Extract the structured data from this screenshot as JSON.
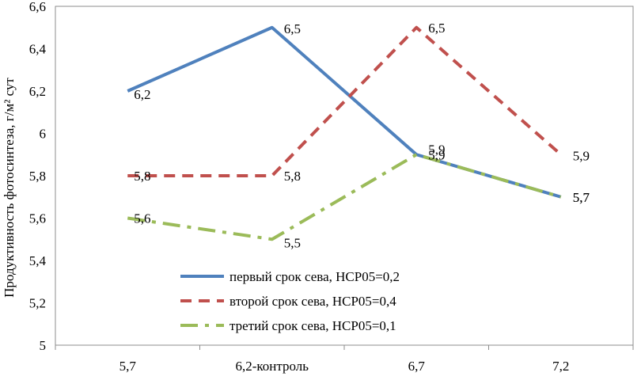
{
  "chart_data": {
    "type": "line",
    "categories": [
      "5,7",
      "6,2-контроль",
      "6,7",
      "7,2"
    ],
    "ylabel": "Продуктивность фотосинтеза, г/м² сут",
    "ylim": [
      5,
      6.6
    ],
    "yticks": [
      5,
      5.2,
      5.4,
      5.6,
      5.8,
      6,
      6.2,
      6.4,
      6.6
    ],
    "ytick_labels": [
      "5",
      "5,2",
      "5,4",
      "5,6",
      "5,8",
      "6",
      "6,2",
      "6,4",
      "6,6"
    ],
    "grid": false,
    "legend_position": "bottom-center",
    "series": [
      {
        "name": "первый срок сева, НСР05=0,2",
        "values": [
          6.2,
          6.5,
          5.9,
          5.7
        ],
        "labels": [
          "6,2",
          "6,5",
          "5,9",
          "5,7"
        ],
        "color": "#4f81bd",
        "dash": "solid"
      },
      {
        "name": "второй срок сева, НСР05=0,4",
        "values": [
          5.8,
          5.8,
          6.5,
          5.9
        ],
        "labels": [
          "5,8",
          "5,8",
          "6,5",
          "5,9"
        ],
        "color": "#c0504d",
        "dash": "dash"
      },
      {
        "name": "третий срок сева, НСР05=0,1",
        "values": [
          5.6,
          5.5,
          5.9,
          5.7
        ],
        "labels": [
          "5,6",
          "5,5",
          "5,9",
          "5,7"
        ],
        "color": "#9bbb59",
        "dash": "dashdot"
      }
    ]
  }
}
